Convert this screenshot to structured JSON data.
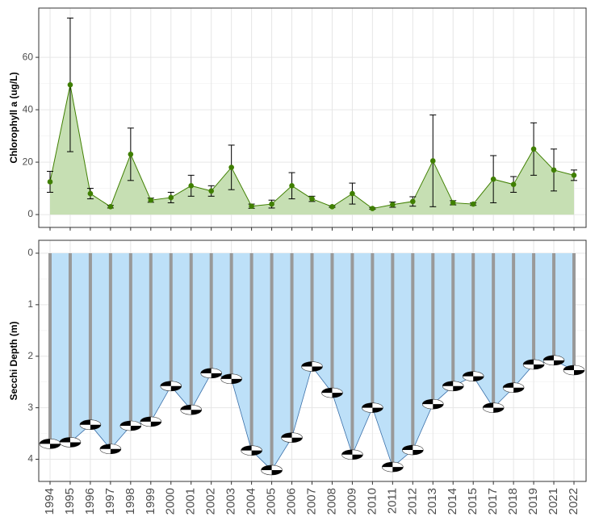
{
  "chart_data": [
    {
      "type": "line",
      "y_label": "Chlorophyll a (ug/L)",
      "categories": [
        "1994",
        "1995",
        "1996",
        "1997",
        "1998",
        "1999",
        "2000",
        "2001",
        "2002",
        "2003",
        "2004",
        "2005",
        "2006",
        "2007",
        "2008",
        "2009",
        "2010",
        "2011",
        "2012",
        "2013",
        "2014",
        "2015",
        "2017",
        "2018",
        "2019",
        "2021",
        "2022"
      ],
      "values": [
        12.5,
        49.5,
        8,
        3,
        23,
        5.5,
        6.5,
        11,
        9,
        18,
        3.2,
        4,
        11,
        6,
        3,
        8,
        2.3,
        3.8,
        5,
        20.5,
        4.5,
        4,
        13.5,
        11.5,
        25,
        17,
        15
      ],
      "errors": [
        4,
        25.5,
        2,
        0.5,
        10,
        0.8,
        2,
        4,
        2,
        8.5,
        0.8,
        1.5,
        5,
        1,
        0.3,
        4,
        0.3,
        1,
        1.8,
        17.5,
        0.8,
        0.5,
        9,
        3,
        10,
        8,
        2
      ],
      "color": "#3f7f00",
      "fill": "#c6dfb3",
      "ylim": [
        -4.9,
        78.8
      ],
      "yticks": [
        0,
        20,
        40,
        60
      ],
      "grid": true
    },
    {
      "type": "secchi",
      "y_label": "Secchi Depth (m)",
      "categories": [
        "1994",
        "1995",
        "1996",
        "1997",
        "1998",
        "1999",
        "2000",
        "2001",
        "2002",
        "2003",
        "2004",
        "2005",
        "2006",
        "2007",
        "2008",
        "2009",
        "2010",
        "2011",
        "2012",
        "2013",
        "2014",
        "2015",
        "2017",
        "2018",
        "2019",
        "2021",
        "2022"
      ],
      "values": [
        3.7,
        3.67,
        3.33,
        3.8,
        3.35,
        3.27,
        2.58,
        3.04,
        2.33,
        2.44,
        3.83,
        4.21,
        3.58,
        2.2,
        2.71,
        3.91,
        3.0,
        4.15,
        3.82,
        2.93,
        2.58,
        2.39,
        3.0,
        2.61,
        2.16,
        2.08,
        2.27
      ],
      "color": "#3a6fa8",
      "fill": "#bde0f8",
      "bar_color": "#999999",
      "ylim": [
        -0.25,
        4.43
      ],
      "y_reversed": true,
      "yticks": [
        0,
        1,
        2,
        3,
        4
      ],
      "grid": true
    }
  ]
}
